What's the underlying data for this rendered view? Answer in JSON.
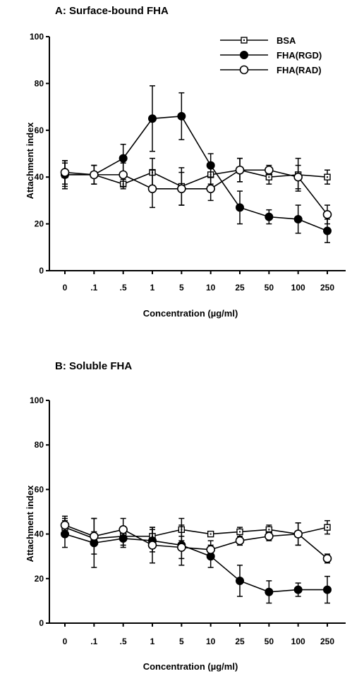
{
  "chart_data": [
    {
      "type": "line",
      "title": "A: Surface-bound FHA",
      "xlabel": "Concentration (µg/ml)",
      "ylabel": "Attachment index",
      "categories": [
        "0",
        ".1",
        ".5",
        "1",
        "5",
        "10",
        "25",
        "50",
        "100",
        "250"
      ],
      "ylim": [
        0,
        100
      ],
      "yticks": [
        0,
        20,
        40,
        60,
        80,
        100
      ],
      "legend_position": "top-right",
      "series": [
        {
          "name": "BSA",
          "marker": "dotted-square",
          "values": [
            41,
            41,
            37,
            42,
            36,
            41,
            43,
            40,
            41,
            40
          ],
          "errors": [
            6,
            4,
            2,
            6,
            8,
            4,
            5,
            3,
            7,
            3
          ]
        },
        {
          "name": "FHA(RGD)",
          "marker": "filled-circle",
          "values": [
            41,
            41,
            48,
            65,
            66,
            45,
            27,
            23,
            22,
            17
          ],
          "errors": [
            5,
            4,
            6,
            14,
            10,
            5,
            7,
            3,
            6,
            5
          ]
        },
        {
          "name": "FHA(RAD)",
          "marker": "open-circle",
          "values": [
            42,
            41,
            41,
            35,
            35,
            35,
            43,
            43,
            40,
            24
          ],
          "errors": [
            5,
            4,
            5,
            8,
            7,
            5,
            5,
            2,
            5,
            4
          ]
        }
      ]
    },
    {
      "type": "line",
      "title": "B: Soluble FHA",
      "xlabel": "Concentration (µg/ml)",
      "ylabel": "Attachment index",
      "categories": [
        "0",
        ".1",
        ".5",
        "1",
        "5",
        "10",
        "25",
        "50",
        "100",
        "250"
      ],
      "ylim": [
        0,
        100
      ],
      "yticks": [
        0,
        20,
        40,
        60,
        80,
        100
      ],
      "series": [
        {
          "name": "BSA",
          "marker": "dotted-square",
          "values": [
            43,
            38,
            39,
            39,
            42,
            40,
            41,
            42,
            40,
            43
          ],
          "errors": [
            4,
            3,
            4,
            4,
            5,
            1,
            2,
            2,
            5,
            3
          ]
        },
        {
          "name": "FHA(RGD)",
          "marker": "filled-circle",
          "values": [
            40,
            36,
            38,
            37,
            35,
            30,
            19,
            14,
            15,
            15
          ],
          "errors": [
            6,
            11,
            4,
            5,
            9,
            5,
            7,
            5,
            3,
            6
          ]
        },
        {
          "name": "FHA(RAD)",
          "marker": "open-circle",
          "values": [
            44,
            39,
            42,
            35,
            34,
            33,
            37,
            39,
            40,
            29
          ],
          "errors": [
            4,
            8,
            5,
            8,
            5,
            4,
            2,
            2,
            5,
            2
          ]
        }
      ]
    }
  ]
}
